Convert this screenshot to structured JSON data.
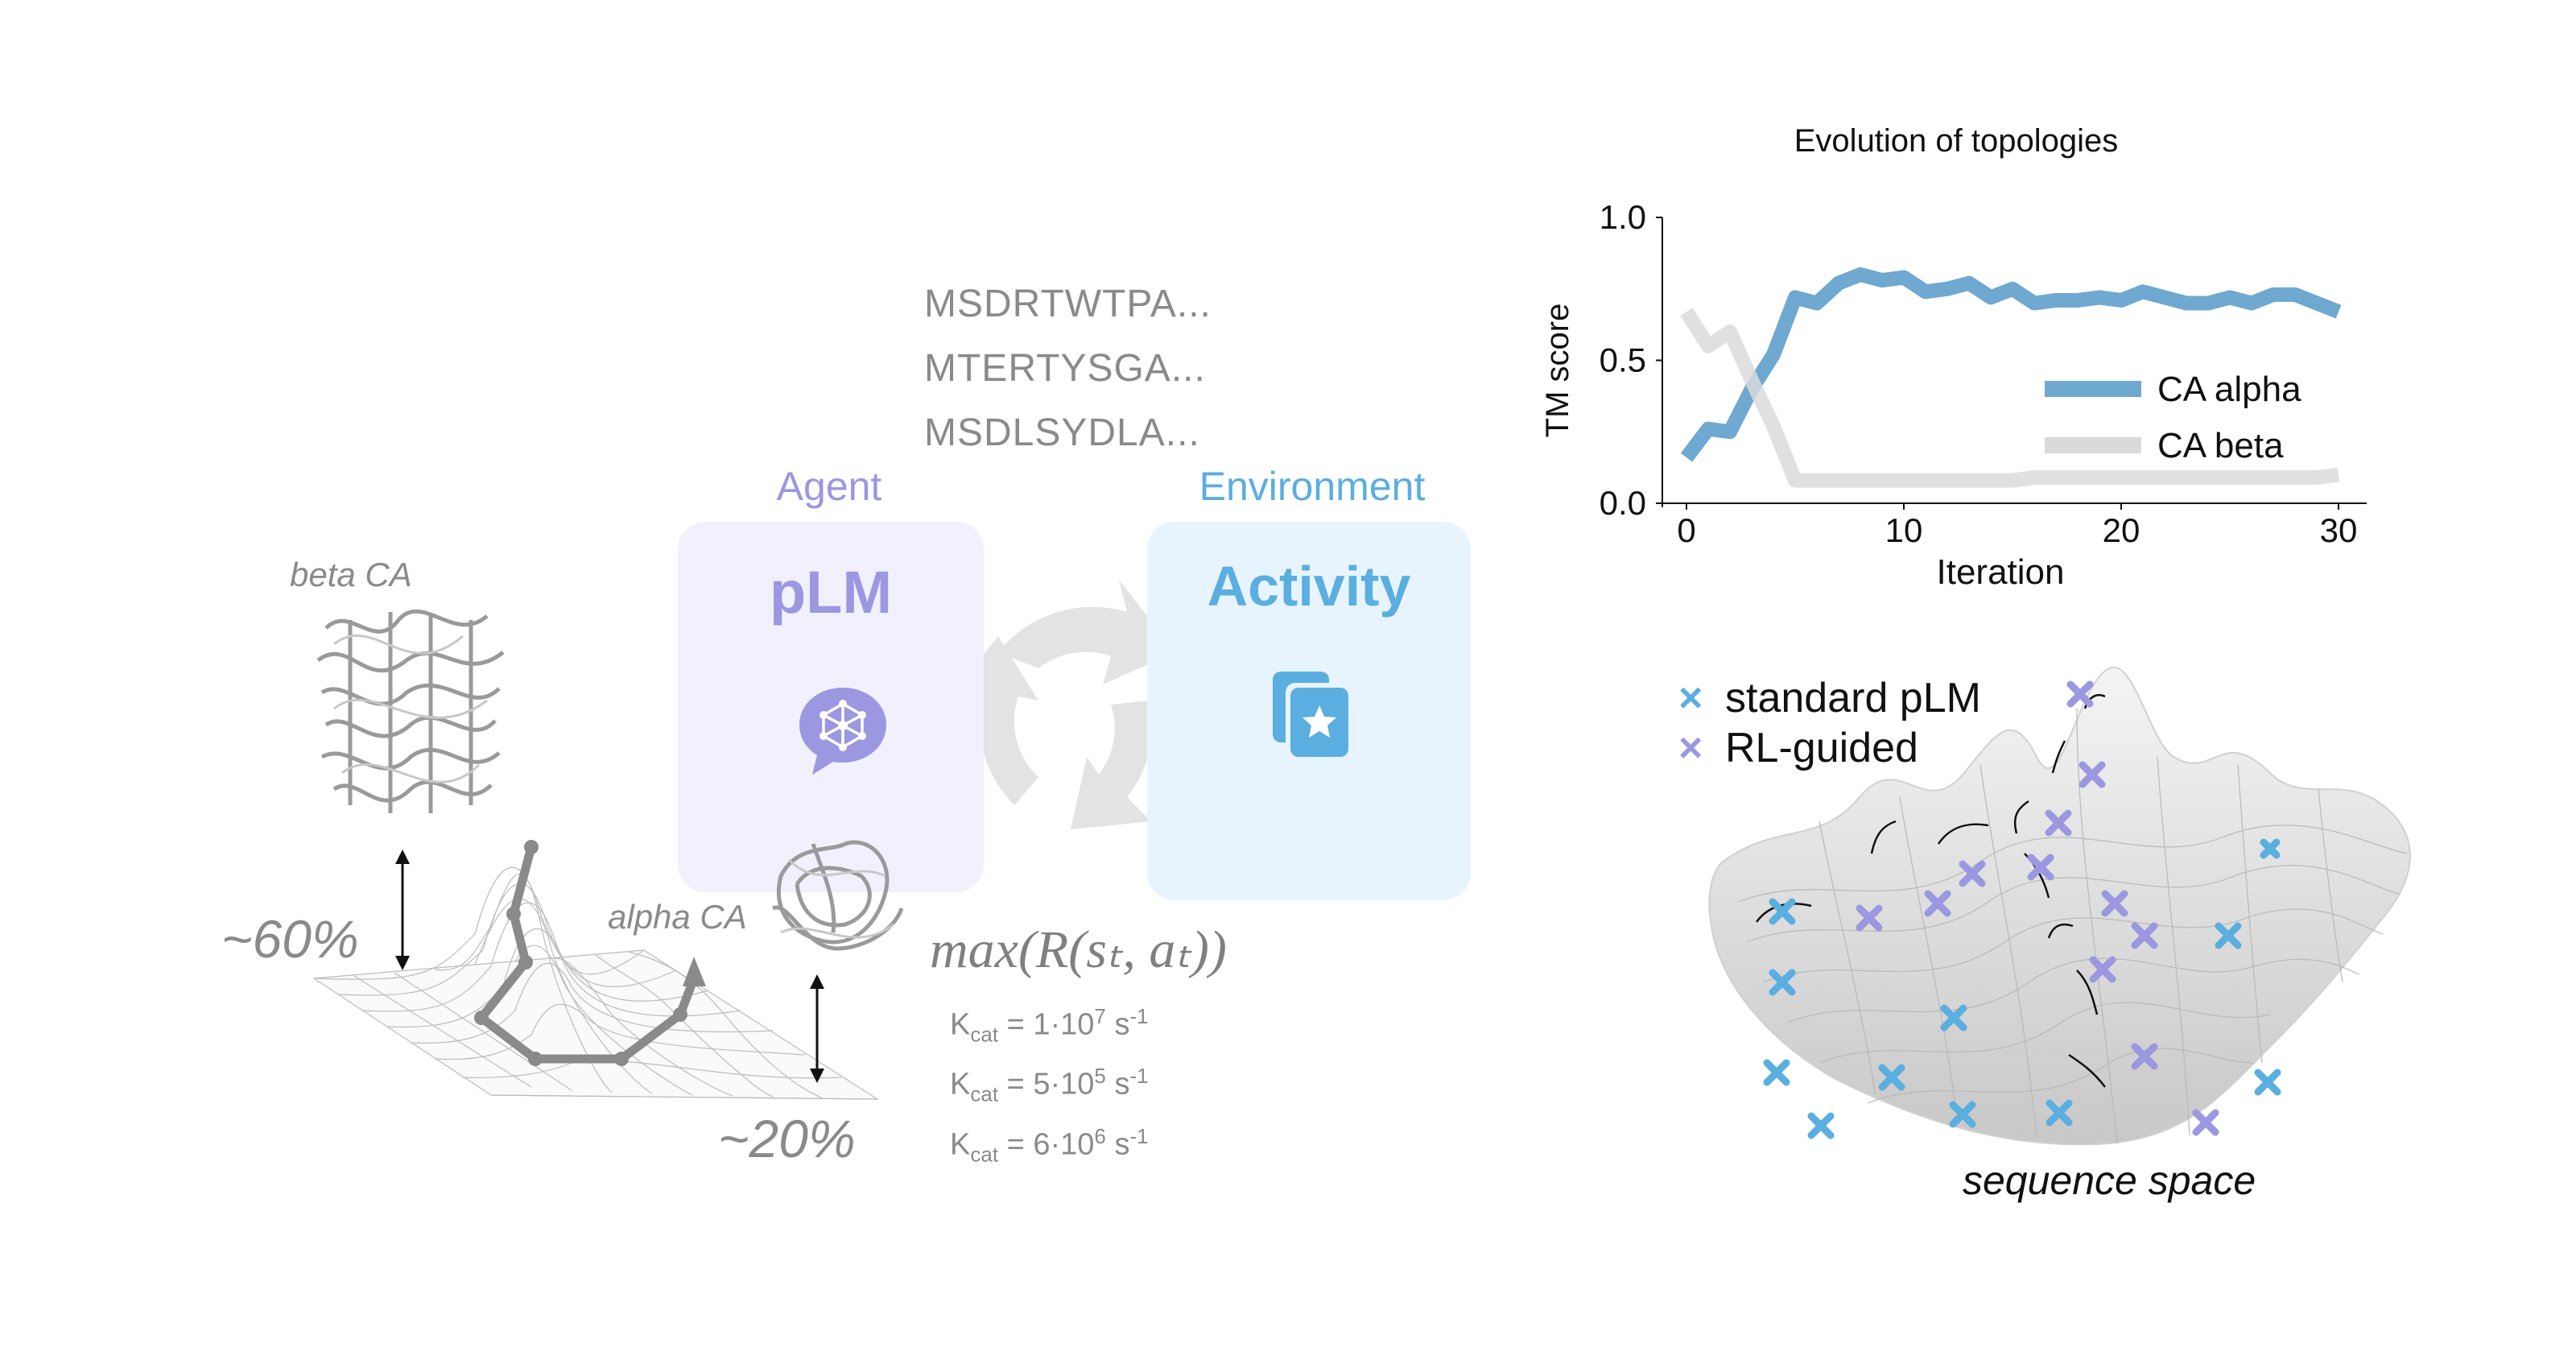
{
  "sequences": [
    "MSDRTWTPA...",
    "MTERTYSGA...",
    "MSDLSYDLA..."
  ],
  "agent": {
    "role": "Agent",
    "title": "pLM",
    "color": "#9b97e0",
    "card_bg": "#f1f0fd",
    "icon": "network-chat-icon"
  },
  "environment": {
    "role": "Environment",
    "title": "Activity",
    "color": "#5aaee0",
    "card_bg": "#e8f4fd",
    "icon": "star-document-icon"
  },
  "cycle_icon": "cycle-arrows-icon",
  "landscape": {
    "beta_label": "beta CA",
    "alpha_label": "alpha CA",
    "beta_pct": "~60%",
    "alpha_pct": "~20%"
  },
  "objective": {
    "formula": "max(R(sₜ, aₜ))",
    "kcat": [
      {
        "base": "K",
        "sub": "cat",
        "eq": " = 1·10",
        "exp": "7",
        "unit": " s",
        "unit_exp": "-1"
      },
      {
        "base": "K",
        "sub": "cat",
        "eq": " = 5·10",
        "exp": "5",
        "unit": " s",
        "unit_exp": "-1"
      },
      {
        "base": "K",
        "sub": "cat",
        "eq": " = 6·10",
        "exp": "6",
        "unit": " s",
        "unit_exp": "-1"
      }
    ]
  },
  "chart_data": {
    "type": "line",
    "title": "Evolution of topologies",
    "xlabel": "Iteration",
    "ylabel": "TM score",
    "xlim": [
      0,
      30
    ],
    "ylim": [
      0,
      1
    ],
    "xticks": [
      "0",
      "10",
      "20",
      "30"
    ],
    "yticks": [
      "0.0",
      "0.5",
      "1.0"
    ],
    "legend_position": "center-right",
    "series": [
      {
        "name": "CA alpha",
        "color": "#6fa8d0",
        "x": [
          0,
          1,
          2,
          3,
          4,
          5,
          6,
          7,
          8,
          9,
          10,
          11,
          12,
          13,
          14,
          15,
          16,
          17,
          18,
          19,
          20,
          21,
          22,
          23,
          24,
          25,
          26,
          27,
          28,
          29,
          30
        ],
        "y": [
          0.16,
          0.26,
          0.25,
          0.4,
          0.52,
          0.72,
          0.7,
          0.77,
          0.8,
          0.78,
          0.79,
          0.74,
          0.75,
          0.77,
          0.72,
          0.75,
          0.7,
          0.71,
          0.71,
          0.72,
          0.71,
          0.74,
          0.72,
          0.7,
          0.7,
          0.72,
          0.7,
          0.73,
          0.73,
          0.7,
          0.67
        ]
      },
      {
        "name": "CA beta",
        "color": "#dadada",
        "x": [
          0,
          1,
          2,
          3,
          4,
          5,
          6,
          7,
          8,
          9,
          10,
          11,
          12,
          13,
          14,
          15,
          16,
          17,
          18,
          19,
          20,
          21,
          22,
          23,
          24,
          25,
          26,
          27,
          28,
          29,
          30
        ],
        "y": [
          0.67,
          0.55,
          0.6,
          0.43,
          0.27,
          0.08,
          0.08,
          0.08,
          0.08,
          0.08,
          0.08,
          0.08,
          0.08,
          0.08,
          0.08,
          0.08,
          0.09,
          0.09,
          0.09,
          0.09,
          0.09,
          0.09,
          0.09,
          0.09,
          0.09,
          0.09,
          0.09,
          0.09,
          0.09,
          0.09,
          0.1
        ]
      }
    ]
  },
  "sequence_space": {
    "legend": [
      {
        "label": "standard pLM",
        "color": "#5aaee0"
      },
      {
        "label": "RL-guided",
        "color": "#9b97e0"
      }
    ],
    "caption": "sequence space"
  }
}
